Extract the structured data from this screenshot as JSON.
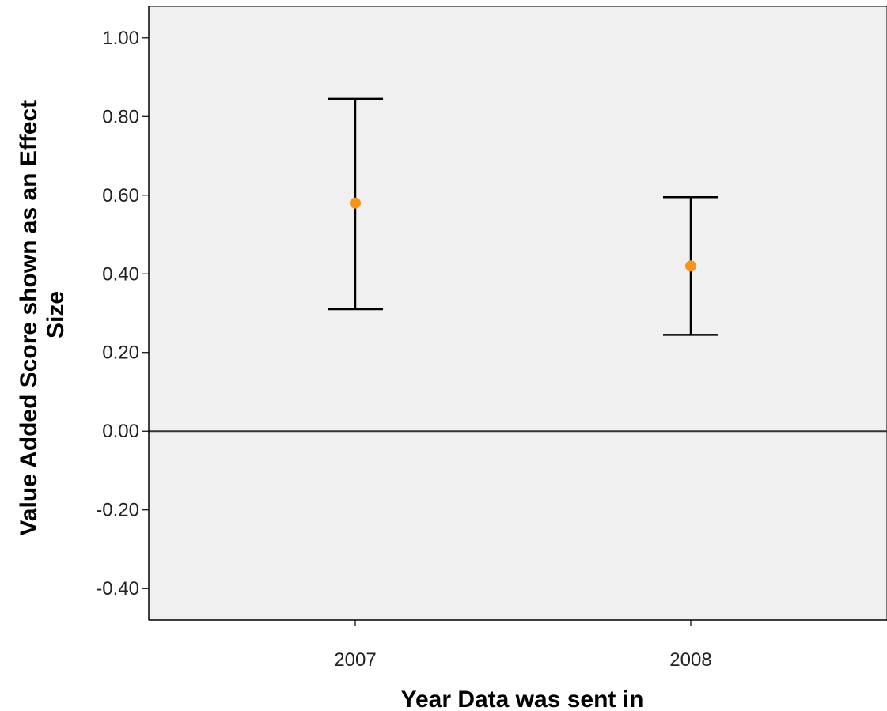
{
  "chart_data": {
    "type": "errorbar",
    "xlabel": "Year Data was sent in",
    "ylabel": [
      "Value Added Score shown as an Effect",
      "Size"
    ],
    "categories": [
      "2007",
      "2008"
    ],
    "values": [
      0.58,
      0.42
    ],
    "lower": [
      0.31,
      0.245
    ],
    "upper": [
      0.845,
      0.595
    ],
    "ylim": [
      -0.48,
      1.08
    ],
    "yticks": [
      1.0,
      0.8,
      0.6,
      0.4,
      0.2,
      0.0,
      -0.2,
      -0.4
    ],
    "ytick_labels": [
      "1.00",
      "0.80",
      "0.60",
      "0.40",
      "0.20",
      "0.00",
      "-0.20",
      "-0.40"
    ],
    "reference_line": 0,
    "grid": false,
    "colors": {
      "point": "#f7941d",
      "error_bar": "#000000",
      "plot_background": "#f0f0f0",
      "reference_line": "#333333"
    }
  }
}
